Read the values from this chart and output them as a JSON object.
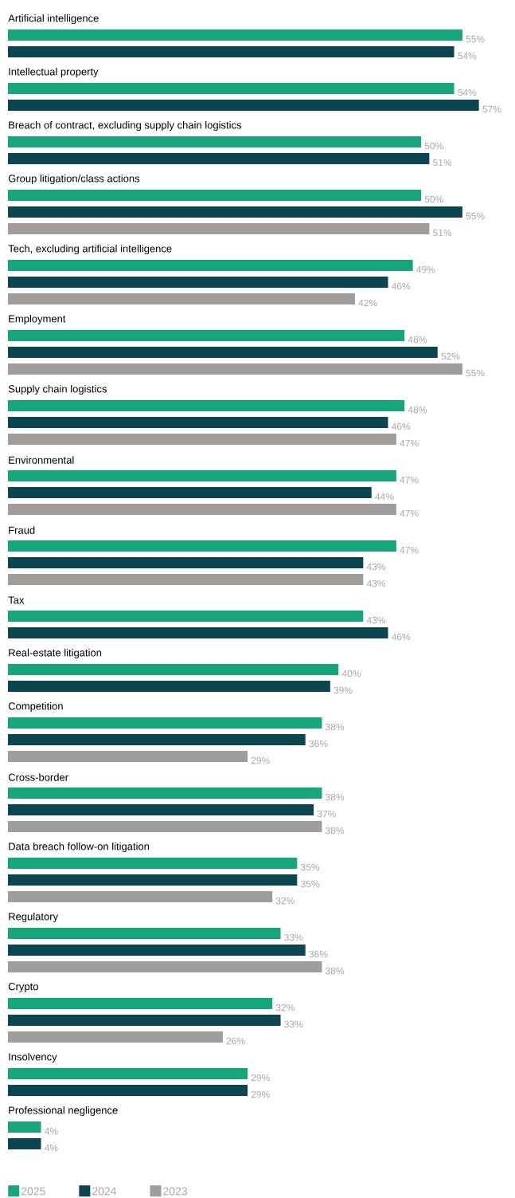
{
  "chart_data": {
    "type": "bar",
    "orientation": "horizontal",
    "legend": "bottom",
    "categories": [
      "Artificial intelligence",
      "Intellectual property",
      "Breach of contract, excluding supply chain logistics",
      "Group litigation/class actions",
      "Tech, excluding artificial intelligence",
      "Employment",
      "Supply chain logistics",
      "Environmental",
      "Fraud",
      "Tax",
      "Real-estate litigation",
      "Competition",
      "Cross-border",
      "Data breach follow-on litigation",
      "Regulatory",
      "Crypto",
      "Insolvency",
      "Professional negligence"
    ],
    "series": [
      {
        "name": "2025",
        "color": "#17a67b",
        "values": [
          55,
          54,
          50,
          50,
          49,
          48,
          48,
          47,
          47,
          43,
          40,
          38,
          38,
          35,
          33,
          32,
          29,
          4
        ],
        "value_labels": [
          "55%",
          "54%",
          "50%",
          "50%",
          "49%",
          "48%",
          "48%",
          "47%",
          "47%",
          "43%",
          "40%",
          "38%",
          "38%",
          "35%",
          "33%",
          "32%",
          "29%",
          "4%"
        ]
      },
      {
        "name": "2024",
        "color": "#0b4550",
        "values": [
          54,
          57,
          51,
          55,
          46,
          52,
          46,
          44,
          43,
          46,
          39,
          36,
          37,
          35,
          36,
          33,
          29,
          4
        ],
        "value_labels": [
          "54%",
          "57%",
          "51%",
          "55%",
          "46%",
          "52%",
          "46%",
          "44%",
          "43%",
          "46%",
          "39%",
          "36%",
          "37%",
          "35%",
          "36%",
          "33%",
          "29%",
          "4%"
        ]
      },
      {
        "name": "2023",
        "color": "#a09c9a",
        "values": [
          null,
          null,
          null,
          51,
          42,
          55,
          47,
          47,
          43,
          null,
          null,
          29,
          38,
          32,
          38,
          26,
          null,
          null
        ],
        "value_labels": [
          null,
          null,
          null,
          "51%",
          "42%",
          "55%",
          "47%",
          "47%",
          "43%",
          null,
          null,
          "29%",
          "38%",
          "32%",
          "38%",
          "26%",
          null,
          null
        ]
      }
    ]
  }
}
